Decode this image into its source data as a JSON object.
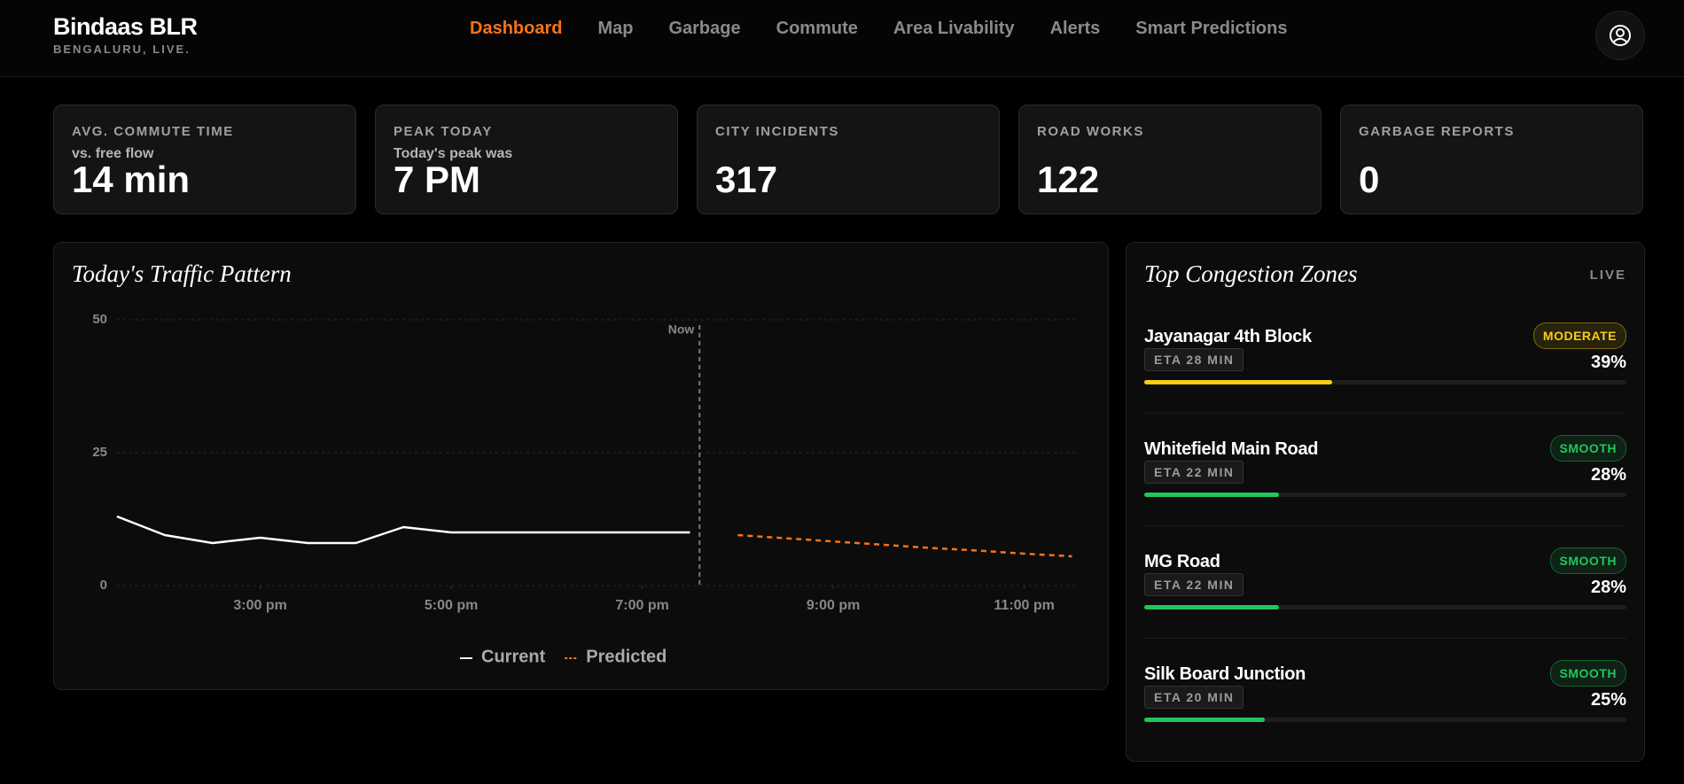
{
  "header": {
    "brand": "Bindaas BLR",
    "tagline": "BENGALURU, LIVE.",
    "nav": [
      "Dashboard",
      "Map",
      "Garbage",
      "Commute",
      "Area Livability",
      "Alerts",
      "Smart Predictions"
    ]
  },
  "stats": [
    {
      "label": "AVG. COMMUTE TIME",
      "sub": "vs. free flow",
      "value": "14 min"
    },
    {
      "label": "PEAK TODAY",
      "sub": "Today's peak was",
      "value": "7 PM"
    },
    {
      "label": "CITY INCIDENTS",
      "value": "317"
    },
    {
      "label": "ROAD WORKS",
      "value": "122"
    },
    {
      "label": "GARBAGE REPORTS",
      "value": "0"
    }
  ],
  "chart_data": {
    "type": "line",
    "title": "Today's Traffic Pattern",
    "x": [
      13.5,
      14,
      14.5,
      15,
      15.5,
      16,
      16.5,
      17,
      17.5,
      18,
      18.5,
      19,
      19.5,
      20,
      20.5,
      21,
      21.5,
      22,
      22.5,
      23,
      23.5
    ],
    "series": [
      {
        "name": "Current",
        "color": "#ffffff",
        "dashed": false,
        "values": [
          13,
          9.5,
          8,
          9,
          8,
          8,
          11,
          10,
          10,
          10,
          10,
          10,
          10,
          null,
          null,
          null,
          null,
          null,
          null,
          null,
          null
        ]
      },
      {
        "name": "Predicted",
        "color": "#f97316",
        "dashed": true,
        "values": [
          null,
          null,
          null,
          null,
          null,
          null,
          null,
          null,
          null,
          null,
          null,
          null,
          null,
          9.5,
          8.9,
          8.3,
          7.7,
          7.1,
          6.6,
          6,
          5.5
        ]
      }
    ],
    "xlim": [
      13.5,
      23.56
    ],
    "xticks": [
      {
        "value": 15,
        "label": "3:00 pm"
      },
      {
        "value": 17,
        "label": "5:00 pm"
      },
      {
        "value": 19,
        "label": "7:00 pm"
      },
      {
        "value": 21,
        "label": "9:00 pm"
      },
      {
        "value": 23,
        "label": "11:00 pm"
      }
    ],
    "ylim": [
      0,
      50
    ],
    "yticks": [
      0,
      25,
      50
    ],
    "grid": true,
    "now": {
      "value": 19.6,
      "label": "Now"
    }
  },
  "zones": {
    "title": "Top Congestion Zones",
    "badge": "LIVE",
    "items": [
      {
        "name": "Jayanagar 4th Block",
        "status": "MODERATE",
        "color": "#facc15",
        "eta": "ETA 28 MIN",
        "percent": 39,
        "percent_label": "39%"
      },
      {
        "name": "Whitefield Main Road",
        "status": "SMOOTH",
        "color": "#22c55e",
        "eta": "ETA 22 MIN",
        "percent": 28,
        "percent_label": "28%"
      },
      {
        "name": "MG Road",
        "status": "SMOOTH",
        "color": "#22c55e",
        "eta": "ETA 22 MIN",
        "percent": 28,
        "percent_label": "28%"
      },
      {
        "name": "Silk Board Junction",
        "status": "SMOOTH",
        "color": "#22c55e",
        "eta": "ETA 20 MIN",
        "percent": 25,
        "percent_label": "25%"
      }
    ]
  }
}
